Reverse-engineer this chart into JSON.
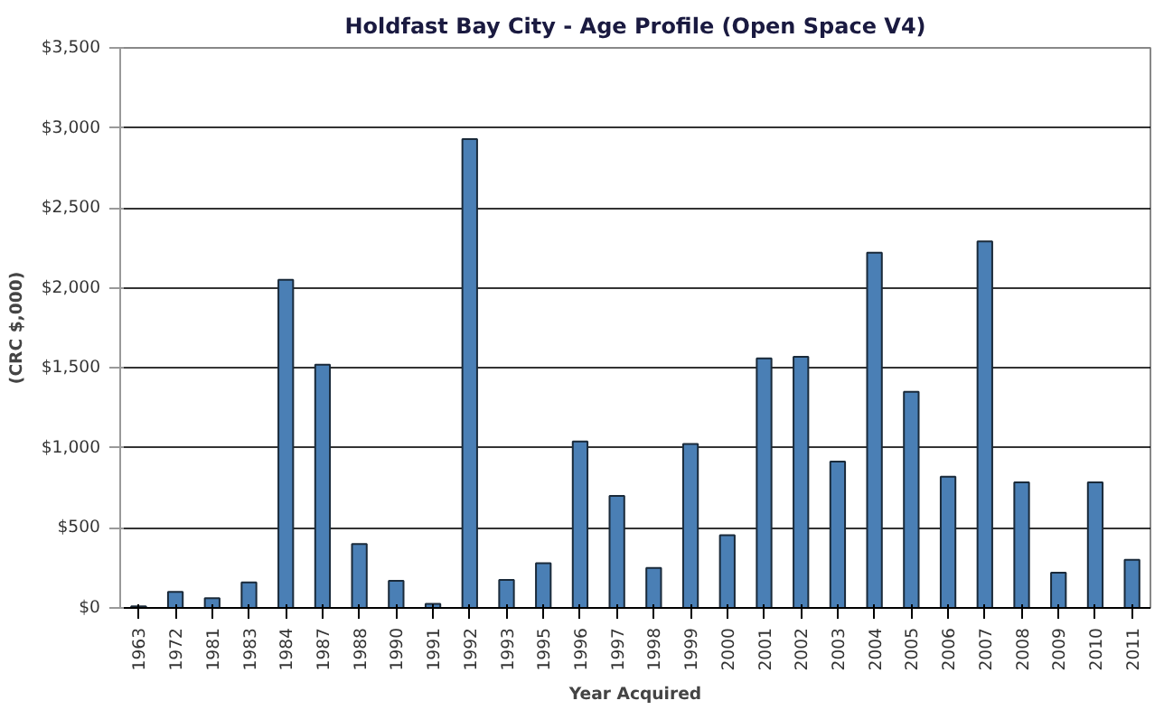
{
  "chart_data": {
    "type": "bar",
    "title": "Holdfast Bay City - Age Profile (Open Space V4)",
    "xlabel": "Year Acquired",
    "ylabel": "(CRC $,000)",
    "categories": [
      "1963",
      "1972",
      "1981",
      "1983",
      "1984",
      "1987",
      "1988",
      "1990",
      "1991",
      "1992",
      "1993",
      "1995",
      "1996",
      "1997",
      "1998",
      "1999",
      "2000",
      "2001",
      "2002",
      "2003",
      "2004",
      "2005",
      "2006",
      "2007",
      "2008",
      "2009",
      "2010",
      "2011"
    ],
    "values": [
      10,
      100,
      60,
      160,
      2050,
      1520,
      400,
      170,
      25,
      2930,
      175,
      280,
      1040,
      700,
      250,
      1025,
      455,
      1560,
      1570,
      915,
      2220,
      1350,
      820,
      2290,
      785,
      220,
      785,
      300
    ],
    "color": "#4a7fb5",
    "ylim": [
      0,
      3500
    ],
    "yticks": [
      {
        "value": 0,
        "label": "$0"
      },
      {
        "value": 500,
        "label": "$500"
      },
      {
        "value": 1000,
        "label": "$1,000"
      },
      {
        "value": 1500,
        "label": "$1,500"
      },
      {
        "value": 2000,
        "label": "$2,000"
      },
      {
        "value": 2500,
        "label": "$2,500"
      },
      {
        "value": 3000,
        "label": "$3,000"
      },
      {
        "value": 3500,
        "label": "$3,500"
      }
    ],
    "grid": "y"
  }
}
